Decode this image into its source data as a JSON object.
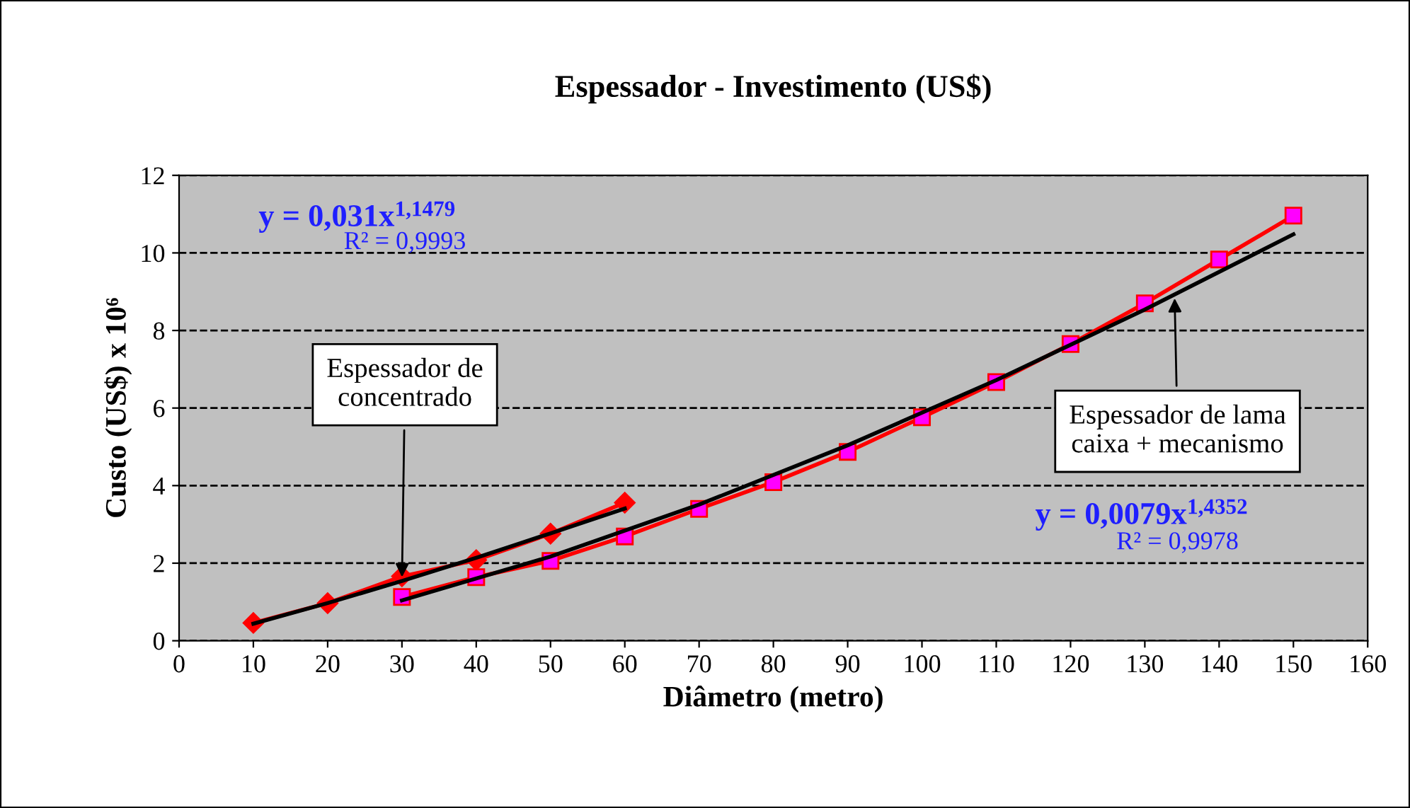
{
  "chart_data": {
    "type": "line",
    "title": "Espessador - Investimento (US$)",
    "xlabel": "Diâmetro (metro)",
    "ylabel": "Custo (US$) x 10⁶",
    "series": [
      {
        "color": "#ff0000",
        "marker": "diamond",
        "x": [
          10,
          20,
          30,
          40,
          50,
          60
        ],
        "values": [
          0.46,
          0.97,
          1.66,
          2.08,
          2.76,
          3.56
        ]
      },
      {
        "color": "#ff0000",
        "marker": "square",
        "x": [
          30,
          40,
          50,
          60,
          70,
          80,
          90,
          100,
          110,
          120,
          130,
          140,
          150
        ],
        "values": [
          1.13,
          1.64,
          2.06,
          2.69,
          3.4,
          4.09,
          4.87,
          5.76,
          6.67,
          7.65,
          8.7,
          9.83,
          10.96
        ]
      },
      {
        "color": "#000000",
        "marker": "none",
        "x": [
          10,
          20,
          30,
          40,
          50,
          60
        ],
        "values": [
          0.44,
          0.97,
          1.54,
          2.14,
          2.77,
          3.41
        ]
      },
      {
        "color": "#000000",
        "marker": "none",
        "x": [
          30,
          50,
          70,
          90,
          110,
          130,
          150
        ],
        "values": [
          1.04,
          2.17,
          3.51,
          5.04,
          6.72,
          8.54,
          10.48
        ]
      }
    ],
    "annotations": [
      "y = 0,031x$^{1,1479}$",
      "R² = 0,9993",
      "y = 0,0079x$^{1,4352}$",
      "R² = 0,9978",
      {
        "text": "Espessador de\nconcentrado",
        "x": 30,
        "y": 1.54
      },
      {
        "text": "Espessador de lama\ncaixa + mecanismo",
        "x": 134,
        "y": 8.93
      }
    ],
    "xlim": [
      0,
      160
    ],
    "xticks": [
      0,
      10,
      20,
      30,
      40,
      50,
      60,
      70,
      80,
      90,
      100,
      110,
      120,
      130,
      140,
      150,
      160
    ],
    "ylim": [
      0,
      12
    ],
    "yticks": [
      0,
      2,
      4,
      6,
      8,
      10,
      12
    ],
    "grid": "y",
    "legend": false
  }
}
